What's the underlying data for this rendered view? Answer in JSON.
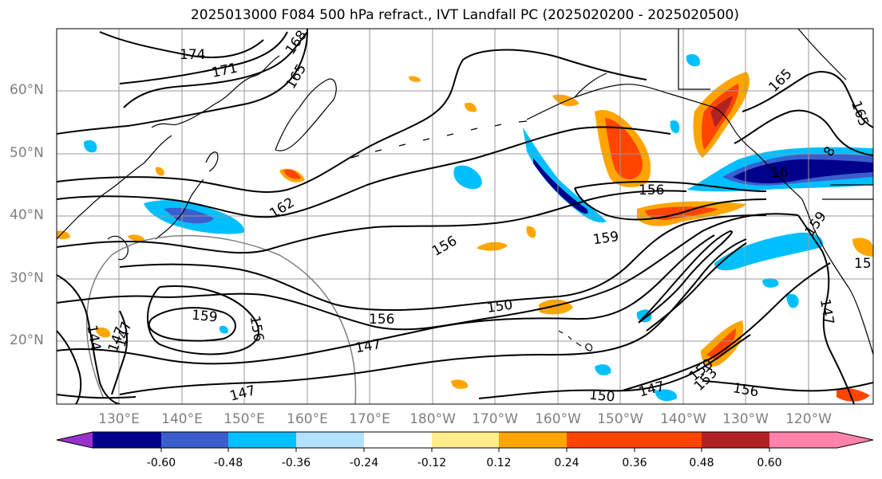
{
  "title": "2025013000 F084 500 hPa refract., IVT Landfall PC (2025020200 - 2025020500)",
  "lat_labels": [
    "60°N",
    "50°N",
    "40°N",
    "30°N",
    "20°N"
  ],
  "lon_labels": [
    "130°E",
    "140°E",
    "150°E",
    "160°E",
    "170°E",
    "180°W",
    "170°W",
    "160°W",
    "150°W",
    "140°W",
    "130°W",
    "120°W"
  ],
  "contour_labels": [
    "174",
    "171",
    "168",
    "165",
    "162",
    "159",
    "156",
    "156",
    "156",
    "156",
    "150",
    "147",
    "147",
    "147",
    "147",
    "150",
    "147",
    "153",
    "150",
    "156",
    "165",
    "165",
    "16",
    "159",
    "15",
    "147",
    "159",
    "144"
  ],
  "colorbar": {
    "colors": [
      "#9932cc",
      "#00008b",
      "#3a5fcd",
      "#00bfff",
      "#b2e2ff",
      "#ffffff",
      "#ffec8b",
      "#ffa500",
      "#ff4500",
      "#b22222",
      "#ff82ab"
    ],
    "tick_labels": [
      "-0.60",
      "-0.48",
      "-0.36",
      "-0.24",
      "-0.12",
      "0.12",
      "0.24",
      "0.36",
      "0.48",
      "0.60"
    ]
  }
}
